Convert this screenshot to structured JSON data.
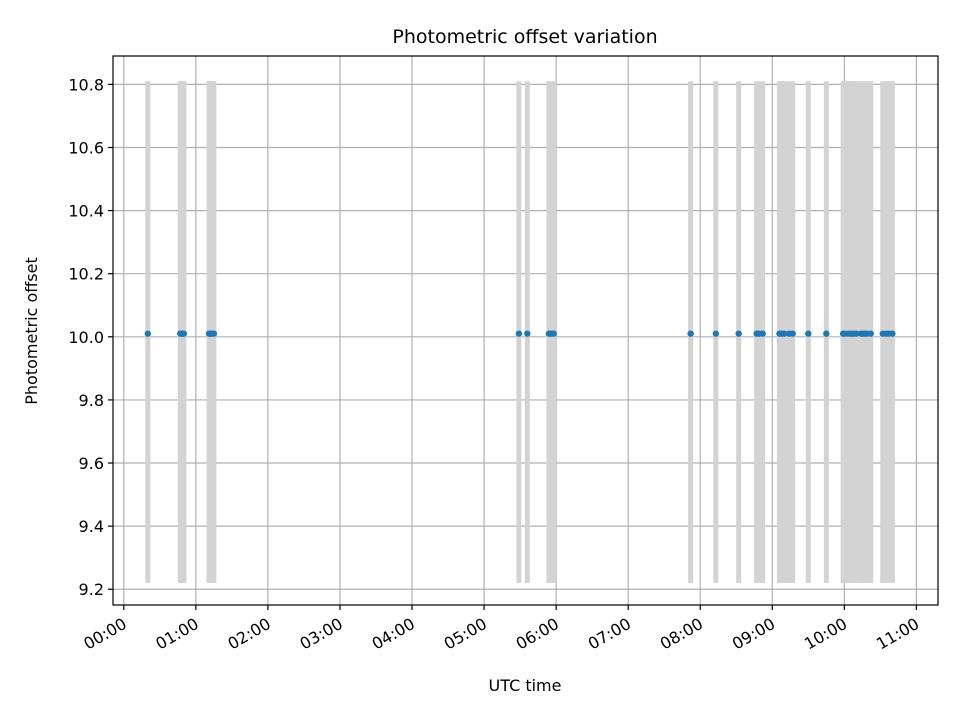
{
  "chart_data": {
    "type": "scatter",
    "title": "Photometric offset variation",
    "xlabel": "UTC time",
    "ylabel": "Photometric offset",
    "x_tick_labels": [
      "00:00",
      "01:00",
      "02:00",
      "03:00",
      "04:00",
      "05:00",
      "06:00",
      "07:00",
      "08:00",
      "09:00",
      "10:00",
      "11:00"
    ],
    "y_tick_labels": [
      "9.2",
      "9.4",
      "9.6",
      "9.8",
      "10.0",
      "10.2",
      "10.4",
      "10.6",
      "10.8"
    ],
    "y_ticks": [
      9.2,
      9.4,
      9.6,
      9.8,
      10.0,
      10.2,
      10.4,
      10.6,
      10.8
    ],
    "xlim": [
      "-00:09",
      "11:18"
    ],
    "ylim": [
      9.15,
      10.89
    ],
    "grid": true,
    "error_range": [
      9.22,
      10.81
    ],
    "series": [
      {
        "color": "#1f77b4",
        "error_color": "#d3d3d3",
        "x": [
          "00:20",
          "00:47",
          "00:48",
          "00:49",
          "00:50",
          "01:11",
          "01:12",
          "01:13",
          "01:15",
          "05:29",
          "05:36",
          "05:54",
          "05:56",
          "05:58",
          "07:52",
          "08:13",
          "08:32",
          "08:47",
          "08:49",
          "08:52",
          "09:06",
          "09:08",
          "09:10",
          "09:14",
          "09:17",
          "09:30",
          "09:45",
          "09:59",
          "10:00",
          "10:03",
          "10:05",
          "10:06",
          "10:08",
          "10:10",
          "10:14",
          "10:15",
          "10:17",
          "10:19",
          "10:22",
          "10:32",
          "10:35",
          "10:37",
          "10:40"
        ],
        "y": [
          10.01,
          10.01,
          10.01,
          10.01,
          10.01,
          10.01,
          10.01,
          10.01,
          10.01,
          10.01,
          10.01,
          10.01,
          10.01,
          10.01,
          10.01,
          10.01,
          10.01,
          10.01,
          10.01,
          10.01,
          10.01,
          10.01,
          10.01,
          10.01,
          10.01,
          10.01,
          10.01,
          10.01,
          10.01,
          10.01,
          10.01,
          10.01,
          10.01,
          10.01,
          10.01,
          10.01,
          10.01,
          10.01,
          10.01,
          10.01,
          10.01,
          10.01,
          10.01
        ]
      }
    ]
  }
}
